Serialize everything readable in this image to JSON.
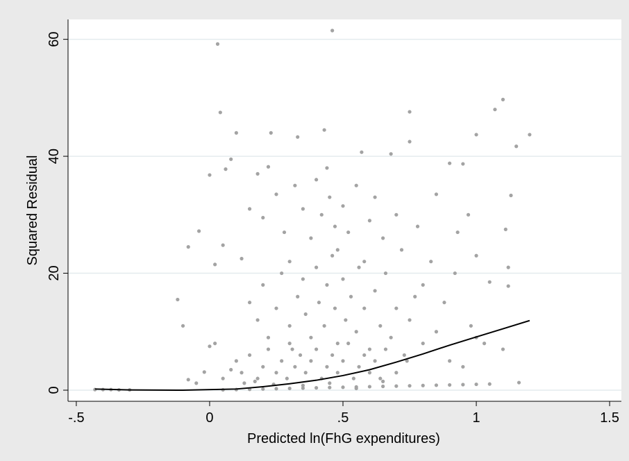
{
  "chart_data": {
    "type": "scatter",
    "xlabel": "Predicted ln(FhG expenditures)",
    "ylabel": "Squared Residual",
    "xlim": [
      -0.531,
      1.544
    ],
    "ylim": [
      -1.9,
      63.4
    ],
    "xticks": [
      {
        "value": -0.5,
        "label": "-.5"
      },
      0,
      {
        "value": 0.5,
        "label": ".5"
      },
      1,
      {
        "value": 1.5,
        "label": "1.5"
      }
    ],
    "yticks": [
      0,
      20,
      40,
      60
    ],
    "grid": true,
    "series": [
      {
        "type": "scatter",
        "color": "#a3a3a3",
        "x": [
          0.03,
          0.46,
          0.04,
          0.1,
          0.23,
          0.33,
          0.43,
          0.75,
          1.07,
          1.1,
          1.2,
          1.0,
          0.57,
          0.68,
          0.75,
          -0.08,
          -0.04,
          -0.12,
          -0.1,
          0,
          0.06,
          0.08,
          0.18,
          0.22,
          1.15,
          1.13,
          1.11,
          1.12,
          1.12,
          1.16,
          1.05,
          1.0,
          0.95,
          0.9,
          0.85,
          0.97,
          0.93,
          0.02,
          0.05,
          0.12,
          0.15,
          0.2,
          0.25,
          0.28,
          0.3,
          0.32,
          0.35,
          0.38,
          0.4,
          0.42,
          0.44,
          0.45,
          0.47,
          0.48,
          0.5,
          0.52,
          0.55,
          0.58,
          0.6,
          0.62,
          0.65,
          0.7,
          0.72,
          0.78,
          0.8,
          0.83,
          0.88,
          0.92,
          0.98,
          1.03,
          0.15,
          0.18,
          0.2,
          0.22,
          0.25,
          0.27,
          0.3,
          0.31,
          0.33,
          0.35,
          0.36,
          0.38,
          0.4,
          0.41,
          0.43,
          0.44,
          0.46,
          0.47,
          0.48,
          0.5,
          0.51,
          0.53,
          0.55,
          0.56,
          0.58,
          0.6,
          0.62,
          0.64,
          0.66,
          0.68,
          0.7,
          0.73,
          0.75,
          0.77,
          0.8,
          0.85,
          0.9,
          0.95,
          1.0,
          1.1,
          0.1,
          0.12,
          0.15,
          0.18,
          0.2,
          0.22,
          0.25,
          0.27,
          0.29,
          0.3,
          0.32,
          0.34,
          0.36,
          0.38,
          0.4,
          0.42,
          0.44,
          0.46,
          0.48,
          0.5,
          0.52,
          0.54,
          0.56,
          0.58,
          0.6,
          0.62,
          0.64,
          0.66,
          0.7,
          0.74,
          -0.05,
          -0.02,
          -0.08,
          0,
          0.02,
          0.05,
          0.08,
          0.13,
          0.17,
          0.24,
          -0.43,
          -0.4,
          -0.37,
          -0.34,
          -0.3,
          0.05,
          0.1,
          0.15,
          0.2,
          0.25,
          0.3,
          0.35,
          0.4,
          0.45,
          0.5,
          0.55,
          0.6,
          0.65,
          0.7,
          0.75,
          0.8,
          0.85,
          0.9,
          0.95,
          1.0,
          1.05,
          0.35,
          0.45,
          0.55,
          0.65
        ],
        "values": [
          59.2,
          61.5,
          47.5,
          44,
          44,
          43.3,
          44.5,
          47.6,
          48,
          49.7,
          43.7,
          43.7,
          40.7,
          40.4,
          42.5,
          24.5,
          27.2,
          15.5,
          11,
          36.8,
          37.8,
          39.5,
          37,
          38.2,
          41.7,
          33.3,
          27.5,
          21,
          17.8,
          1.3,
          18.5,
          23,
          38.7,
          38.8,
          33.5,
          30,
          27,
          21.5,
          24.8,
          22.5,
          31,
          29.5,
          33.5,
          27,
          22,
          35,
          31,
          26,
          36,
          30,
          38,
          33,
          28,
          24,
          31.5,
          27,
          35,
          22,
          29,
          33,
          26,
          30,
          24,
          28,
          18,
          22,
          15,
          20,
          11,
          8,
          15,
          12,
          18,
          9,
          14,
          20,
          11,
          7,
          16,
          19,
          13,
          9,
          21,
          15,
          11,
          18,
          23,
          14,
          8,
          19,
          12,
          16,
          10,
          21,
          14,
          7,
          17,
          11,
          20,
          9,
          14,
          6,
          12,
          16,
          8,
          10,
          5,
          4,
          9,
          7,
          5,
          3,
          6,
          2,
          4,
          7,
          3,
          5,
          2,
          8,
          4,
          6,
          3,
          5,
          7,
          2,
          4,
          6,
          3,
          5,
          8,
          2,
          4,
          6,
          3,
          5,
          2,
          7,
          3,
          5,
          1.2,
          3.1,
          1.8,
          7.5,
          8,
          2,
          3.5,
          1.2,
          1.5,
          1,
          0.1,
          0.1,
          0.1,
          0.05,
          0.05,
          0.05,
          0.1,
          0.15,
          0.2,
          0.25,
          0.3,
          0.35,
          0.4,
          0.45,
          0.5,
          0.55,
          0.6,
          0.65,
          0.7,
          0.75,
          0.8,
          0.85,
          0.9,
          0.95,
          1.0,
          1.05,
          0.8,
          1.2,
          0.3,
          1.5
        ]
      },
      {
        "type": "line",
        "color": "#000000",
        "x": [
          -0.43,
          -0.3,
          -0.1,
          0.1,
          0.2,
          0.3,
          0.4,
          0.5,
          0.6,
          0.7,
          0.8,
          0.9,
          1.0,
          1.1,
          1.2
        ],
        "values": [
          0.2,
          0.05,
          0,
          0.2,
          0.6,
          1.1,
          1.7,
          2.5,
          3.5,
          4.8,
          6.2,
          7.7,
          9.1,
          10.5,
          11.9
        ]
      }
    ]
  }
}
